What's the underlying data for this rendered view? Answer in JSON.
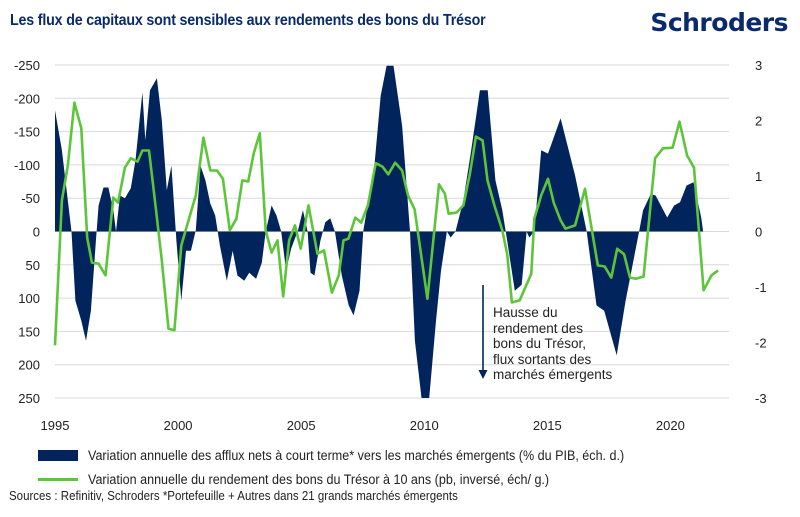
{
  "header": {
    "title": "Les flux de capitaux sont sensibles aux rendements des bons du Trésor",
    "brand": "Schroders"
  },
  "colors": {
    "title": "#0b2a6b",
    "area": "#00245b",
    "line": "#5cc53a",
    "grid": "#d9d9d9"
  },
  "chart_data": {
    "type": "area",
    "title": "Les flux de capitaux sont sensibles aux rendements des bons du Trésor",
    "xlabel": "",
    "x_ticks": [
      1995,
      2000,
      2005,
      2010,
      2015,
      2020
    ],
    "xlim": [
      1995,
      2022.3
    ],
    "left_axis": {
      "label": "pb, inversé",
      "inverted": true,
      "ylim": [
        -250,
        250
      ],
      "ticks": [
        -250,
        -200,
        -150,
        -100,
        -50,
        0,
        50,
        100,
        150,
        200,
        250
      ]
    },
    "right_axis": {
      "label": "% du PIB",
      "ylim": [
        -3,
        3
      ],
      "ticks": [
        3,
        2,
        1,
        0,
        -1,
        -2,
        -3
      ]
    },
    "grid": true,
    "legend_position": "bottom",
    "series": [
      {
        "name": "Variation annuelle des afflux nets à court terme* vers les marchés émergents (% du PIB, éch. d.)",
        "kind": "area",
        "axis": "left-inverted",
        "points": [
          [
            1995.0,
            -182
          ],
          [
            1995.28,
            -122
          ],
          [
            1995.52,
            -47
          ],
          [
            1995.67,
            0
          ],
          [
            1995.83,
            104
          ],
          [
            1996.07,
            134
          ],
          [
            1996.26,
            164
          ],
          [
            1996.46,
            119
          ],
          [
            1996.66,
            14
          ],
          [
            1996.77,
            -39
          ],
          [
            1996.97,
            -66
          ],
          [
            1997.17,
            -66
          ],
          [
            1997.37,
            -32
          ],
          [
            1997.48,
            0
          ],
          [
            1997.64,
            -54
          ],
          [
            1997.84,
            -50
          ],
          [
            1998.08,
            -65
          ],
          [
            1998.27,
            -107
          ],
          [
            1998.55,
            -209
          ],
          [
            1998.67,
            -137
          ],
          [
            1998.86,
            -212
          ],
          [
            1999.14,
            -230
          ],
          [
            1999.34,
            -167
          ],
          [
            1999.54,
            -62
          ],
          [
            1999.73,
            -99
          ],
          [
            1999.93,
            14
          ],
          [
            2000.13,
            104
          ],
          [
            2000.32,
            29
          ],
          [
            2000.52,
            29
          ],
          [
            2000.72,
            -2
          ],
          [
            2000.91,
            -99
          ],
          [
            2001.11,
            -77
          ],
          [
            2001.31,
            -42
          ],
          [
            2001.51,
            -24
          ],
          [
            2001.7,
            21
          ],
          [
            2001.98,
            74
          ],
          [
            2002.22,
            29
          ],
          [
            2002.41,
            66
          ],
          [
            2002.69,
            74
          ],
          [
            2002.89,
            62
          ],
          [
            2003.17,
            71
          ],
          [
            2003.4,
            47
          ],
          [
            2003.56,
            0
          ],
          [
            2003.8,
            -39
          ],
          [
            2004.0,
            -24
          ],
          [
            2004.19,
            0
          ],
          [
            2004.39,
            59
          ],
          [
            2004.59,
            26
          ],
          [
            2004.87,
            -2
          ],
          [
            2005.07,
            -32
          ],
          [
            2005.26,
            0
          ],
          [
            2005.38,
            62
          ],
          [
            2005.54,
            66
          ],
          [
            2005.78,
            14
          ],
          [
            2005.98,
            -14
          ],
          [
            2006.18,
            -20
          ],
          [
            2006.37,
            0
          ],
          [
            2006.65,
            66
          ],
          [
            2006.93,
            111
          ],
          [
            2007.13,
            126
          ],
          [
            2007.37,
            89
          ],
          [
            2007.52,
            0
          ],
          [
            2007.68,
            -35
          ],
          [
            2007.96,
            -92
          ],
          [
            2008.23,
            -204
          ],
          [
            2008.47,
            -249
          ],
          [
            2008.75,
            -249
          ],
          [
            2009.1,
            -159
          ],
          [
            2009.42,
            0
          ],
          [
            2009.62,
            164
          ],
          [
            2009.89,
            250
          ],
          [
            2010.2,
            250
          ],
          [
            2010.48,
            134
          ],
          [
            2010.68,
            59
          ],
          [
            2010.92,
            0
          ],
          [
            2011.07,
            9
          ],
          [
            2011.27,
            0
          ],
          [
            2011.59,
            -47
          ],
          [
            2011.91,
            -122
          ],
          [
            2012.26,
            -212
          ],
          [
            2012.58,
            -212
          ],
          [
            2012.89,
            -77
          ],
          [
            2013.17,
            -32
          ],
          [
            2013.37,
            14
          ],
          [
            2013.68,
            89
          ],
          [
            2013.96,
            80
          ],
          [
            2014.16,
            0
          ],
          [
            2014.27,
            9
          ],
          [
            2014.47,
            0
          ],
          [
            2014.75,
            -122
          ],
          [
            2015.03,
            -117
          ],
          [
            2015.54,
            -170
          ],
          [
            2016.13,
            -84
          ],
          [
            2016.6,
            0
          ],
          [
            2017.0,
            111
          ],
          [
            2017.31,
            119
          ],
          [
            2017.82,
            186
          ],
          [
            2018.18,
            104
          ],
          [
            2018.73,
            0
          ],
          [
            2018.89,
            -32
          ],
          [
            2019.2,
            -56
          ],
          [
            2019.4,
            -54
          ],
          [
            2019.87,
            -21
          ],
          [
            2020.15,
            -39
          ],
          [
            2020.39,
            -44
          ],
          [
            2020.66,
            -69
          ],
          [
            2020.94,
            -74
          ],
          [
            2021.25,
            -21
          ],
          [
            2021.33,
            0
          ]
        ]
      },
      {
        "name": "Variation annuelle du rendement des bons du Trésor à 10 ans (pb, inversé, éch/ g.)",
        "kind": "line",
        "axis": "right",
        "points": [
          [
            1995.0,
            -2.05
          ],
          [
            1995.28,
            0.56
          ],
          [
            1995.52,
            1.19
          ],
          [
            1995.79,
            2.32
          ],
          [
            1996.07,
            1.86
          ],
          [
            1996.31,
            -0.11
          ],
          [
            1996.5,
            -0.56
          ],
          [
            1996.77,
            -0.58
          ],
          [
            1997.05,
            -0.79
          ],
          [
            1997.37,
            0.61
          ],
          [
            1997.56,
            0.52
          ],
          [
            1997.84,
            1.15
          ],
          [
            1998.08,
            1.32
          ],
          [
            1998.35,
            1.26
          ],
          [
            1998.55,
            1.46
          ],
          [
            1998.82,
            1.46
          ],
          [
            1999.06,
            0.56
          ],
          [
            1999.34,
            -0.52
          ],
          [
            1999.61,
            -1.75
          ],
          [
            1999.85,
            -1.78
          ],
          [
            2000.13,
            -0.25
          ],
          [
            2000.72,
            0.65
          ],
          [
            2001.03,
            1.69
          ],
          [
            2001.31,
            1.1
          ],
          [
            2001.58,
            1.1
          ],
          [
            2001.82,
            0.95
          ],
          [
            2002.1,
            0.02
          ],
          [
            2002.37,
            0.23
          ],
          [
            2002.61,
            0.92
          ],
          [
            2002.85,
            0.9
          ],
          [
            2003.08,
            1.42
          ],
          [
            2003.32,
            1.77
          ],
          [
            2003.56,
            0.02
          ],
          [
            2003.8,
            -0.38
          ],
          [
            2004.04,
            -0.16
          ],
          [
            2004.27,
            -1.17
          ],
          [
            2004.51,
            -0.16
          ],
          [
            2004.75,
            0.11
          ],
          [
            2004.98,
            -0.31
          ],
          [
            2005.3,
            0.47
          ],
          [
            2005.66,
            -0.4
          ],
          [
            2005.93,
            -0.34
          ],
          [
            2006.25,
            -1.1
          ],
          [
            2006.53,
            -0.79
          ],
          [
            2006.72,
            -0.16
          ],
          [
            2006.92,
            -0.13
          ],
          [
            2007.2,
            0.25
          ],
          [
            2007.44,
            0.16
          ],
          [
            2007.71,
            0.47
          ],
          [
            2008.03,
            1.23
          ],
          [
            2008.3,
            1.17
          ],
          [
            2008.54,
            1.03
          ],
          [
            2008.82,
            1.24
          ],
          [
            2009.1,
            1.1
          ],
          [
            2009.34,
            0.65
          ],
          [
            2009.61,
            0.4
          ],
          [
            2010.13,
            -1.21
          ],
          [
            2010.6,
            0.85
          ],
          [
            2010.84,
            0.68
          ],
          [
            2010.99,
            0.32
          ],
          [
            2011.31,
            0.34
          ],
          [
            2011.59,
            0.47
          ],
          [
            2011.86,
            1.05
          ],
          [
            2012.1,
            1.71
          ],
          [
            2012.37,
            1.64
          ],
          [
            2012.57,
            0.92
          ],
          [
            2012.85,
            0.47
          ],
          [
            2013.17,
            0.02
          ],
          [
            2013.37,
            -0.41
          ],
          [
            2013.56,
            -1.28
          ],
          [
            2013.88,
            -1.24
          ],
          [
            2014.35,
            -0.76
          ],
          [
            2014.47,
            0.23
          ],
          [
            2014.75,
            0.65
          ],
          [
            2015.03,
            0.95
          ],
          [
            2015.26,
            0.52
          ],
          [
            2015.54,
            0.2
          ],
          [
            2015.74,
            0.05
          ],
          [
            2016.13,
            0.11
          ],
          [
            2016.53,
            0.77
          ],
          [
            2017.05,
            -0.61
          ],
          [
            2017.33,
            -0.63
          ],
          [
            2017.6,
            -0.83
          ],
          [
            2017.84,
            -0.31
          ],
          [
            2018.12,
            -0.41
          ],
          [
            2018.36,
            -0.83
          ],
          [
            2018.6,
            -0.85
          ],
          [
            2018.91,
            -0.81
          ],
          [
            2019.38,
            1.32
          ],
          [
            2019.7,
            1.5
          ],
          [
            2020.09,
            1.51
          ],
          [
            2020.37,
            1.98
          ],
          [
            2020.68,
            1.37
          ],
          [
            2020.96,
            1.15
          ],
          [
            2021.35,
            -1.06
          ],
          [
            2021.67,
            -0.79
          ],
          [
            2021.94,
            -0.7
          ]
        ]
      }
    ],
    "annotation": {
      "text_lines": [
        "Hausse du",
        "rendement des",
        "bons du Trésor,",
        "flux sortants des",
        "marchés émergents"
      ],
      "arrow": "down"
    }
  },
  "legend": {
    "area_label": "Variation annuelle des afflux nets à court terme* vers les marchés émergents (% du PIB, éch. d.)",
    "line_label": "Variation annuelle du rendement des bons du Trésor à 10 ans (pb, inversé, éch/ g.)"
  },
  "source": "Sources : Refinitiv, Schroders *Portefeuille + Autres dans 21 grands marchés émergents"
}
